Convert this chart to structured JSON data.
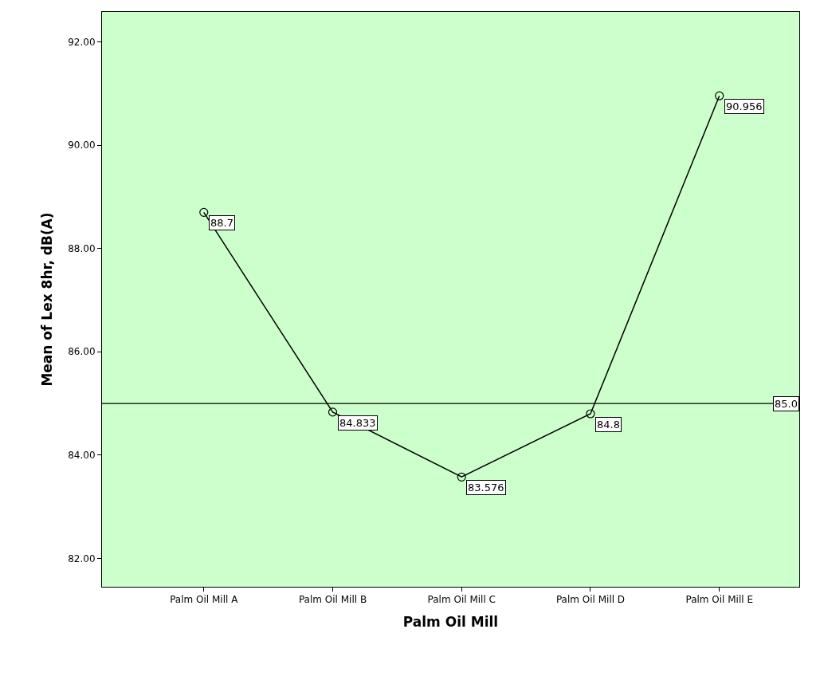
{
  "chart_data": {
    "type": "line",
    "xlabel": "Palm Oil Mill",
    "ylabel": "Mean of Lex 8hr, dB(A)",
    "categories": [
      "Palm Oil Mill A",
      "Palm Oil Mill B",
      "Palm Oil Mill C",
      "Palm Oil Mill D",
      "Palm Oil Mill E"
    ],
    "series": [
      {
        "color": "#000000",
        "values": [
          88.7,
          84.833,
          83.576,
          84.8,
          90.956
        ],
        "value_labels": [
          "88.7",
          "84.833",
          "83.576",
          "84.8",
          "90.956"
        ]
      }
    ],
    "ylim": [
      81.45,
      92.58
    ],
    "yticks": [
      {
        "value": 82,
        "label": "82.00"
      },
      {
        "value": 84,
        "label": "84.00"
      },
      {
        "value": 86,
        "label": "86.00"
      },
      {
        "value": 88,
        "label": "88.00"
      },
      {
        "value": 90,
        "label": "90.00"
      },
      {
        "value": 92,
        "label": "92.00"
      }
    ],
    "ref_lines": [
      {
        "axis": "y",
        "value": 85,
        "label": "85.0",
        "color": "#000000"
      }
    ],
    "marker": "circle",
    "line_style": "solid"
  }
}
